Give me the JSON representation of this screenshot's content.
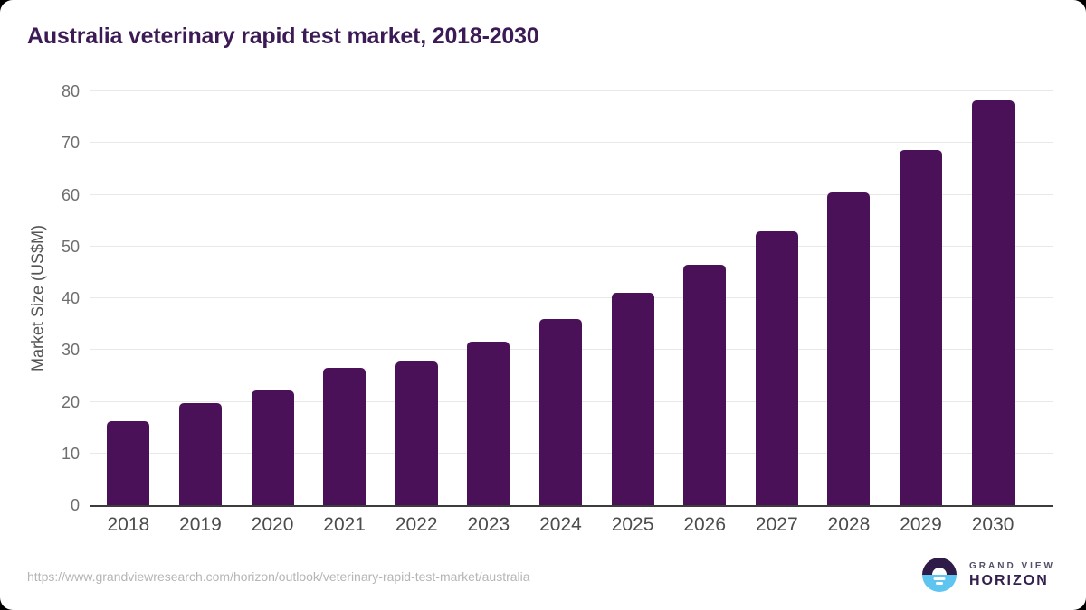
{
  "title": "Australia veterinary rapid test market, 2018-2030",
  "chart_data": {
    "type": "bar",
    "title": "Australia veterinary rapid test market, 2018-2030",
    "categories": [
      "2018",
      "2019",
      "2020",
      "2021",
      "2022",
      "2023",
      "2024",
      "2025",
      "2026",
      "2027",
      "2028",
      "2029",
      "2030"
    ],
    "values": [
      16.3,
      19.8,
      22.2,
      26.5,
      27.8,
      31.7,
      36.0,
      41.0,
      46.5,
      53.0,
      60.4,
      68.6,
      78.2
    ],
    "xlabel": "",
    "ylabel": "Market Size (US$M)",
    "ylim": [
      0,
      80
    ],
    "ytick_step": 10,
    "grid": true,
    "legend": "none",
    "bar_color": "#4a1158"
  },
  "footer": {
    "source_url": "https://www.grandviewresearch.com/horizon/outlook/veterinary-rapid-test-market/australia",
    "logo": {
      "line1": "GRAND VIEW",
      "line2": "HORIZON",
      "icon": "horizon-sun-icon"
    }
  },
  "colors": {
    "bar": "#4a1158",
    "title_text": "#3b1a55",
    "axis_line": "#3c3c3c",
    "gridline": "#e8e8e8",
    "tick_text": "#6e6e6e",
    "x_tick_text": "#4c4c4c",
    "url_text": "#b5b5b5",
    "logo_navy": "#2e1b47",
    "logo_blue": "#5ec4f0"
  }
}
